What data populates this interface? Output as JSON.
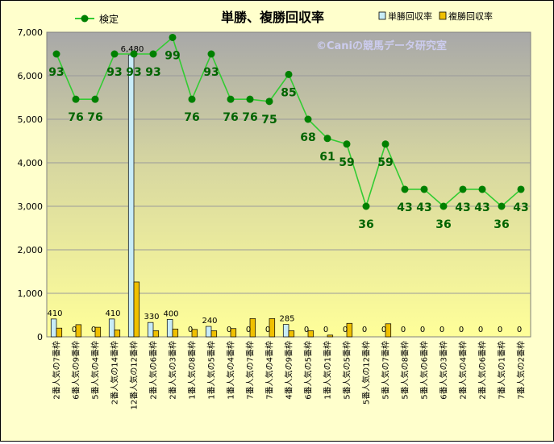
{
  "chart_data": {
    "type": "bar+line",
    "title": "単勝、複勝回収率",
    "watermark": "©Caniの競馬データ研究室",
    "categories": [
      "2番人気の7番枠",
      "6番人気の9番枠",
      "5番人気の4番枠",
      "2番人気の14番枠",
      "12番人気の12番枠",
      "2番人気の6番枠",
      "2番人気の3番枠",
      "1番人気の8番枠",
      "1番人気の5番枠",
      "1番人気の4番枠",
      "7番人気の7番枠",
      "7番人気の4番枠",
      "4番人気の9番枠",
      "6番人気の5番枠",
      "1番人気の1番枠",
      "5番人気の5番枠",
      "5番人気の12番枠",
      "5番人気の7番枠",
      "5番人気の8番枠",
      "5番人気の6番枠",
      "6番人気の3番枠",
      "2番人気の4番枠",
      "2番人気の6番枠",
      "7番人気の1番枠",
      "7番人気の2番枠"
    ],
    "y_axis": {
      "min": 0,
      "max": 7000,
      "step": 1000,
      "ticks": [
        "0",
        "1,000",
        "2,000",
        "3,000",
        "4,000",
        "5,000",
        "6,000",
        "7,000"
      ]
    },
    "series": [
      {
        "name": "単勝回収率",
        "kind": "bar",
        "color": "#c8ecf8",
        "values": [
          410,
          0,
          0,
          410,
          6480,
          330,
          400,
          0,
          240,
          0,
          0,
          0,
          285,
          0,
          0,
          0,
          0,
          0,
          0,
          0,
          0,
          0,
          0,
          0,
          0
        ],
        "labels": [
          "410",
          "0",
          "0",
          "410",
          "6,480",
          "330",
          "400",
          "0",
          "240",
          "0",
          "0",
          "0",
          "285",
          "0",
          "0",
          "0",
          "0",
          "0",
          "0",
          "0",
          "0",
          "0",
          "0",
          "0",
          "0"
        ]
      },
      {
        "name": "複勝回収率",
        "kind": "bar",
        "color": "#f0c000",
        "values": [
          200,
          280,
          220,
          160,
          1260,
          140,
          180,
          170,
          140,
          190,
          420,
          420,
          140,
          140,
          40,
          310,
          0,
          300,
          0,
          0,
          0,
          0,
          0,
          0,
          0
        ]
      },
      {
        "name": "検定",
        "kind": "line",
        "color": "#33cc33",
        "marker_color": "#008000",
        "note": "plotted on the 0-7000 axis; labels show the printed values",
        "values": [
          6500,
          5460,
          5460,
          6500,
          6500,
          6500,
          6880,
          5460,
          6500,
          5460,
          5460,
          5410,
          6030,
          5000,
          4560,
          4430,
          3000,
          4430,
          3390,
          3390,
          3000,
          3390,
          3390,
          3000,
          3390
        ],
        "labels": [
          "93",
          "76",
          "76",
          "93",
          "93",
          "93",
          "99",
          "76",
          "93",
          "76",
          "76",
          "75",
          "85",
          "68",
          "61",
          "59",
          "36",
          "59",
          "43",
          "43",
          "36",
          "43",
          "43",
          "36",
          "43"
        ]
      }
    ],
    "legend": [
      {
        "name": "検定",
        "position": "top-left"
      },
      {
        "name": "単勝回収率",
        "position": "top-right"
      },
      {
        "name": "複勝回収率",
        "position": "top-right"
      }
    ],
    "grid": true
  }
}
